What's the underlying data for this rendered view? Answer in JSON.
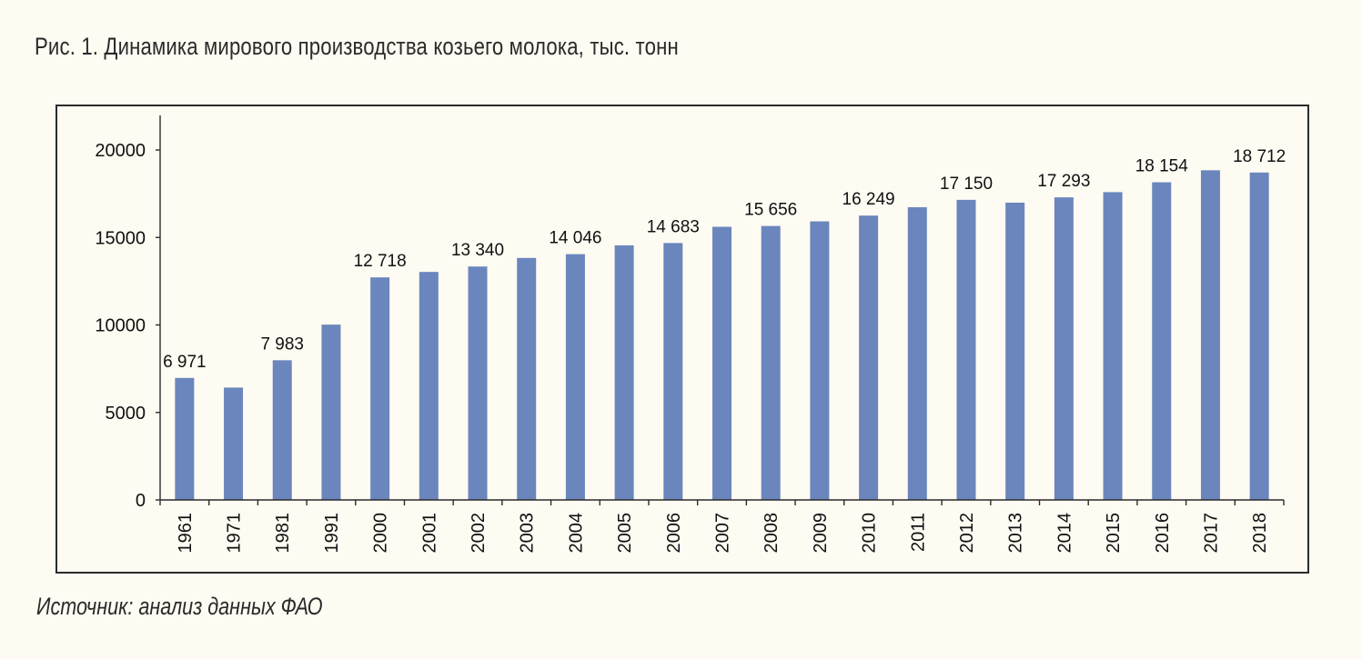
{
  "figure": {
    "title": "Рис. 1. Динамика мирового производства козьего молока, тыс. тонн",
    "source": "Источник: анализ данных ФАО"
  },
  "colors": {
    "bar": "#6b86bd",
    "axis": "#2b2b2b",
    "text": "#111111",
    "background": "#fdfbf2"
  },
  "chart_data": {
    "type": "bar",
    "categories": [
      "1961",
      "1971",
      "1981",
      "1991",
      "2000",
      "2001",
      "2002",
      "2003",
      "2004",
      "2005",
      "2006",
      "2007",
      "2008",
      "2009",
      "2010",
      "2011",
      "2012",
      "2013",
      "2014",
      "2015",
      "2016",
      "2017",
      "2018"
    ],
    "values": [
      6971,
      6420,
      7983,
      10020,
      12718,
      13030,
      13340,
      13830,
      14046,
      14550,
      14683,
      15610,
      15656,
      15920,
      16249,
      16730,
      17150,
      16990,
      17293,
      17590,
      18154,
      18840,
      18712
    ],
    "data_labels": [
      "6 971",
      "",
      "7 983",
      "",
      "12 718",
      "",
      "13 340",
      "",
      "14 046",
      "",
      "14 683",
      "",
      "15 656",
      "",
      "16 249",
      "",
      "17 150",
      "",
      "17 293",
      "",
      "18 154",
      "",
      "18 712"
    ],
    "yticks": [
      "0",
      "5000",
      "10000",
      "15000",
      "20000"
    ],
    "ylim": [
      0,
      22000
    ],
    "grid": false,
    "legend": "none",
    "xlabel": "",
    "ylabel": ""
  }
}
